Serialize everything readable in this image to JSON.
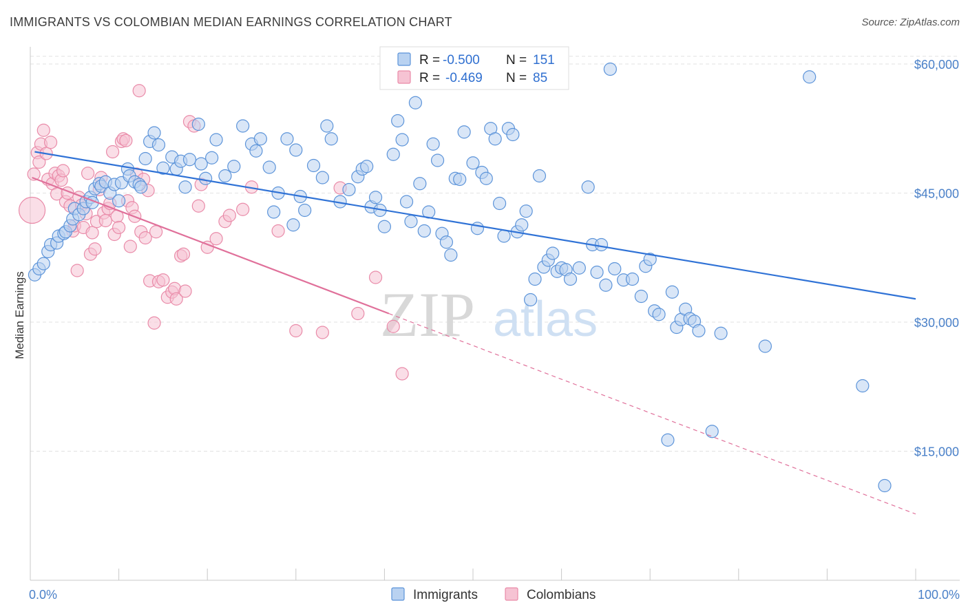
{
  "title": "IMMIGRANTS VS COLOMBIAN MEDIAN EARNINGS CORRELATION CHART",
  "source": "Source: ZipAtlas.com",
  "colors": {
    "immigrants": "#5b93d9",
    "immigrants_fill": "#b9d2f1",
    "immigrants_line": "#2f72d6",
    "colombians": "#e98aa8",
    "colombians_fill": "#f6c3d3",
    "colombians_line": "#e0709a",
    "axis_label": "#4a80c8",
    "grid": "#e2e2e2"
  },
  "legend": {
    "row1": {
      "r_label": "R =",
      "r_value": "-0.500",
      "n_label": "N =",
      "n_value": "151"
    },
    "row2": {
      "r_label": "R =",
      "r_value": "-0.469",
      "n_label": "N =",
      "n_value": "85"
    }
  },
  "watermark": {
    "part1": "ZIP",
    "part2": "atlas"
  },
  "chart_data": {
    "type": "scatter",
    "xlabel": "",
    "ylabel": "Median Earnings",
    "x_tick_labels": [
      "0.0%",
      "100.0%"
    ],
    "y_tick_labels": [
      "$15,000",
      "$30,000",
      "$45,000",
      "$60,000"
    ],
    "y_ticks": [
      15000,
      30000,
      45000,
      60000
    ],
    "xlim": [
      0,
      100
    ],
    "ylim": [
      0,
      62000
    ],
    "grid": true,
    "series": [
      {
        "name": "Immigrants",
        "trendline": {
          "x0": 0.5,
          "y0": 49800,
          "x1": 100,
          "y1": 32700
        },
        "points": [
          [
            0.5,
            35500
          ],
          [
            1,
            36200
          ],
          [
            1.5,
            36800
          ],
          [
            2,
            38200
          ],
          [
            2.3,
            39000
          ],
          [
            3,
            39200
          ],
          [
            3.2,
            40000
          ],
          [
            3.8,
            40300
          ],
          [
            4,
            40500
          ],
          [
            4.5,
            41200
          ],
          [
            4.8,
            42000
          ],
          [
            5,
            43200
          ],
          [
            5.5,
            42500
          ],
          [
            6,
            43200
          ],
          [
            6.3,
            44000
          ],
          [
            6.8,
            44500
          ],
          [
            7,
            43900
          ],
          [
            7.3,
            45500
          ],
          [
            7.8,
            46100
          ],
          [
            8,
            45800
          ],
          [
            8.5,
            46300
          ],
          [
            9,
            45000
          ],
          [
            9.5,
            46000
          ],
          [
            10,
            44100
          ],
          [
            10.3,
            46200
          ],
          [
            11,
            47800
          ],
          [
            11.2,
            47000
          ],
          [
            11.8,
            46300
          ],
          [
            12.3,
            46000
          ],
          [
            12.5,
            45700
          ],
          [
            13,
            49000
          ],
          [
            13.5,
            51000
          ],
          [
            14,
            52000
          ],
          [
            14.5,
            50600
          ],
          [
            15,
            47900
          ],
          [
            16,
            49200
          ],
          [
            16.5,
            47800
          ],
          [
            17,
            48700
          ],
          [
            17.5,
            45700
          ],
          [
            18,
            48900
          ],
          [
            19,
            53000
          ],
          [
            19.3,
            48400
          ],
          [
            19.8,
            46700
          ],
          [
            20.5,
            49100
          ],
          [
            21,
            51200
          ],
          [
            22,
            47000
          ],
          [
            23,
            48100
          ],
          [
            24,
            52800
          ],
          [
            25,
            50700
          ],
          [
            25.5,
            49900
          ],
          [
            26,
            51300
          ],
          [
            27,
            48000
          ],
          [
            27.5,
            42800
          ],
          [
            28,
            45000
          ],
          [
            29,
            51300
          ],
          [
            29.7,
            41300
          ],
          [
            30,
            50000
          ],
          [
            30.5,
            44600
          ],
          [
            31,
            43000
          ],
          [
            32,
            48200
          ],
          [
            33,
            46800
          ],
          [
            33.5,
            52800
          ],
          [
            34,
            51300
          ],
          [
            35,
            44000
          ],
          [
            36,
            45400
          ],
          [
            37,
            46900
          ],
          [
            37.5,
            47800
          ],
          [
            38,
            48100
          ],
          [
            38.5,
            43400
          ],
          [
            39,
            44500
          ],
          [
            39.5,
            43000
          ],
          [
            40,
            41100
          ],
          [
            41,
            49500
          ],
          [
            41.5,
            53400
          ],
          [
            42,
            51200
          ],
          [
            42.5,
            44000
          ],
          [
            43,
            41700
          ],
          [
            43.5,
            55500
          ],
          [
            44,
            46100
          ],
          [
            44.5,
            40600
          ],
          [
            45,
            42800
          ],
          [
            45.5,
            50700
          ],
          [
            46,
            48800
          ],
          [
            46.5,
            40300
          ],
          [
            47,
            39300
          ],
          [
            47.5,
            37800
          ],
          [
            48,
            46700
          ],
          [
            48.5,
            46600
          ],
          [
            49,
            52100
          ],
          [
            50,
            48500
          ],
          [
            50.5,
            40900
          ],
          [
            51,
            47400
          ],
          [
            51.5,
            46700
          ],
          [
            52,
            52500
          ],
          [
            52.5,
            51300
          ],
          [
            53,
            43800
          ],
          [
            53.5,
            40000
          ],
          [
            54,
            52500
          ],
          [
            54.5,
            51800
          ],
          [
            55,
            40500
          ],
          [
            55.5,
            41300
          ],
          [
            56,
            42900
          ],
          [
            56.5,
            32600
          ],
          [
            57,
            35000
          ],
          [
            57.5,
            47000
          ],
          [
            58,
            36400
          ],
          [
            58.5,
            37200
          ],
          [
            59,
            38000
          ],
          [
            59.5,
            35900
          ],
          [
            60,
            36300
          ],
          [
            60.5,
            36100
          ],
          [
            61,
            35000
          ],
          [
            62,
            36300
          ],
          [
            63,
            45700
          ],
          [
            63.5,
            39000
          ],
          [
            64,
            35800
          ],
          [
            64.5,
            39000
          ],
          [
            65,
            34300
          ],
          [
            65.5,
            59400
          ],
          [
            66,
            36200
          ],
          [
            67,
            34900
          ],
          [
            68,
            35000
          ],
          [
            69,
            33000
          ],
          [
            69.5,
            36500
          ],
          [
            70,
            37300
          ],
          [
            70.5,
            31300
          ],
          [
            71,
            30900
          ],
          [
            72,
            16300
          ],
          [
            72.5,
            33500
          ],
          [
            73,
            29400
          ],
          [
            73.5,
            30300
          ],
          [
            74,
            31500
          ],
          [
            74.5,
            30400
          ],
          [
            75,
            30100
          ],
          [
            75.5,
            29000
          ],
          [
            77,
            17300
          ],
          [
            78,
            28700
          ],
          [
            83,
            27200
          ],
          [
            88,
            58500
          ],
          [
            94,
            22600
          ],
          [
            96.5,
            11000
          ]
        ]
      },
      {
        "name": "Colombians",
        "trendline": {
          "x0": 0.2,
          "y0": 46800,
          "x1": 40.5,
          "y1": 31000,
          "dash_x1": 100,
          "dash_y1": 7700
        },
        "points": [
          [
            0.2,
            43000
          ],
          [
            0.4,
            47200
          ],
          [
            0.8,
            49700
          ],
          [
            1,
            48600
          ],
          [
            1.2,
            50700
          ],
          [
            1.5,
            52300
          ],
          [
            1.8,
            49600
          ],
          [
            2,
            46600
          ],
          [
            2.3,
            50900
          ],
          [
            2.5,
            46100
          ],
          [
            2.8,
            47300
          ],
          [
            3,
            44900
          ],
          [
            3.2,
            47000
          ],
          [
            3.5,
            46500
          ],
          [
            3.7,
            47600
          ],
          [
            4,
            44000
          ],
          [
            4.2,
            45000
          ],
          [
            4.5,
            43500
          ],
          [
            4.8,
            40600
          ],
          [
            5,
            41200
          ],
          [
            5.3,
            36000
          ],
          [
            5.5,
            44500
          ],
          [
            5.8,
            43600
          ],
          [
            6,
            41000
          ],
          [
            6.3,
            42600
          ],
          [
            6.5,
            47300
          ],
          [
            6.8,
            37900
          ],
          [
            7,
            40400
          ],
          [
            7.3,
            38500
          ],
          [
            7.5,
            41700
          ],
          [
            7.8,
            45400
          ],
          [
            8,
            46800
          ],
          [
            8.3,
            42700
          ],
          [
            8.5,
            41800
          ],
          [
            8.8,
            43200
          ],
          [
            9,
            43800
          ],
          [
            9.3,
            49800
          ],
          [
            9.5,
            40200
          ],
          [
            9.8,
            42300
          ],
          [
            10,
            41000
          ],
          [
            10.3,
            51000
          ],
          [
            10.5,
            51300
          ],
          [
            10.8,
            51100
          ],
          [
            11,
            44100
          ],
          [
            11.3,
            38800
          ],
          [
            11.5,
            43300
          ],
          [
            11.8,
            42300
          ],
          [
            12,
            47200
          ],
          [
            12.3,
            56900
          ],
          [
            12.5,
            40500
          ],
          [
            12.8,
            46600
          ],
          [
            13,
            39800
          ],
          [
            13.3,
            45300
          ],
          [
            13.5,
            34800
          ],
          [
            14,
            29900
          ],
          [
            14.2,
            40500
          ],
          [
            14.5,
            34700
          ],
          [
            15,
            34900
          ],
          [
            15.5,
            32900
          ],
          [
            16,
            33500
          ],
          [
            16.3,
            33900
          ],
          [
            16.5,
            32700
          ],
          [
            17,
            37700
          ],
          [
            17.3,
            37900
          ],
          [
            17.5,
            33600
          ],
          [
            18,
            53300
          ],
          [
            18.5,
            52800
          ],
          [
            19,
            43500
          ],
          [
            19.3,
            46000
          ],
          [
            20,
            38700
          ],
          [
            21,
            39700
          ],
          [
            22,
            41700
          ],
          [
            22.5,
            42400
          ],
          [
            24,
            43100
          ],
          [
            25,
            45700
          ],
          [
            28,
            40600
          ],
          [
            30,
            29000
          ],
          [
            33,
            28800
          ],
          [
            35,
            45600
          ],
          [
            37,
            31000
          ],
          [
            39,
            35200
          ],
          [
            41,
            29500
          ],
          [
            42,
            24000
          ]
        ]
      }
    ]
  },
  "bottom_legend": {
    "item1": "Immigrants",
    "item2": "Colombians"
  }
}
